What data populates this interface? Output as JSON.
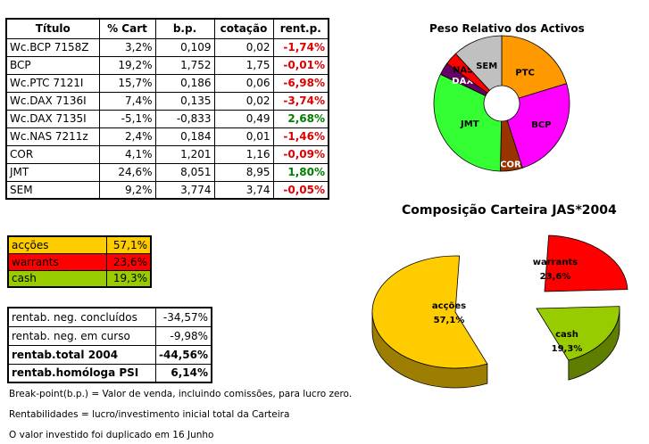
{
  "holdings_table": {
    "headers": [
      "Título",
      "% Cart",
      "b.p.",
      "cotação",
      "rent.p."
    ],
    "rows": [
      {
        "titulo": "Wc.BCP 7158Z",
        "cart": "3,2%",
        "bp": "0,109",
        "cotacao": "0,02",
        "rent": "-1,74%",
        "sign": "neg"
      },
      {
        "titulo": "BCP",
        "cart": "19,2%",
        "bp": "1,752",
        "cotacao": "1,75",
        "rent": "-0,01%",
        "sign": "neg"
      },
      {
        "titulo": "Wc.PTC 7121I",
        "cart": "15,7%",
        "bp": "0,186",
        "cotacao": "0,06",
        "rent": "-6,98%",
        "sign": "neg"
      },
      {
        "titulo": "Wc.DAX 7136I",
        "cart": "7,4%",
        "bp": "0,135",
        "cotacao": "0,02",
        "rent": "-3,74%",
        "sign": "neg"
      },
      {
        "titulo": "Wc.DAX 7135I",
        "cart": "-5,1%",
        "bp": "-0,833",
        "cotacao": "0,49",
        "rent": "2,68%",
        "sign": "pos"
      },
      {
        "titulo": "Wc.NAS 7211z",
        "cart": "2,4%",
        "bp": "0,184",
        "cotacao": "0,01",
        "rent": "-1,46%",
        "sign": "neg"
      },
      {
        "titulo": "COR",
        "cart": "4,1%",
        "bp": "1,201",
        "cotacao": "1,16",
        "rent": "-0,09%",
        "sign": "neg"
      },
      {
        "titulo": "JMT",
        "cart": "24,6%",
        "bp": "8,051",
        "cotacao": "8,95",
        "rent": "1,80%",
        "sign": "pos"
      },
      {
        "titulo": "SEM",
        "cart": "9,2%",
        "bp": "3,774",
        "cotacao": "3,74",
        "rent": "-0,05%",
        "sign": "neg"
      }
    ]
  },
  "allocation_table": {
    "rows": [
      {
        "label": "acções",
        "value": "57,1%",
        "color": "#ffcc00"
      },
      {
        "label": "warrants",
        "value": "23,6%",
        "color": "#ff0000"
      },
      {
        "label": "cash",
        "value": "19,3%",
        "color": "#99cc00"
      }
    ]
  },
  "performance_table": {
    "rows": [
      {
        "label": "rentab. neg. concluídos",
        "value": "-34,57%",
        "bold": false
      },
      {
        "label": "rentab. neg. em curso",
        "value": "-9,98%",
        "bold": false
      },
      {
        "label": "rentab.total 2004",
        "value": "-44,56%",
        "bold": true
      },
      {
        "label": "rentab.homóloga PSI",
        "value": "6,14%",
        "bold": true
      }
    ]
  },
  "notes": {
    "note1": "Break-point(b.p.) = Valor de venda, incluindo comissões, para lucro zero.",
    "note2": "Rentabilidades = lucro/investimento inicial total da Carteira",
    "note3": "O valor investido foi duplicado em 16 Junho"
  },
  "chart_data": [
    {
      "type": "pie",
      "title": "Peso Relativo dos Activos",
      "slices": [
        {
          "label": "PTC",
          "value": 15.7,
          "color": "#ff9900"
        },
        {
          "label": "BCP",
          "value": 19.2,
          "color": "#ff00ff"
        },
        {
          "label": "COR",
          "value": 4.1,
          "color": "#993300"
        },
        {
          "label": "JMT",
          "value": 24.6,
          "color": "#33ff33"
        },
        {
          "label": "DAX",
          "value": 2.3,
          "color": "#660066"
        },
        {
          "label": "NAS",
          "value": 2.4,
          "color": "#ff0000"
        },
        {
          "label": "SEM",
          "value": 9.2,
          "color": "#c0c0c0"
        }
      ],
      "donut": true
    },
    {
      "type": "pie",
      "title": "Composição Carteira JAS*2004",
      "slices": [
        {
          "label": "acções",
          "value_label": "57,1%",
          "value": 57.1,
          "color": "#ffcc00"
        },
        {
          "label": "warrants",
          "value_label": "23,6%",
          "value": 23.6,
          "color": "#ff0000"
        },
        {
          "label": "cash",
          "value_label": "19,3%",
          "value": 19.3,
          "color": "#99cc00"
        }
      ],
      "style": "3d-exploded"
    }
  ]
}
